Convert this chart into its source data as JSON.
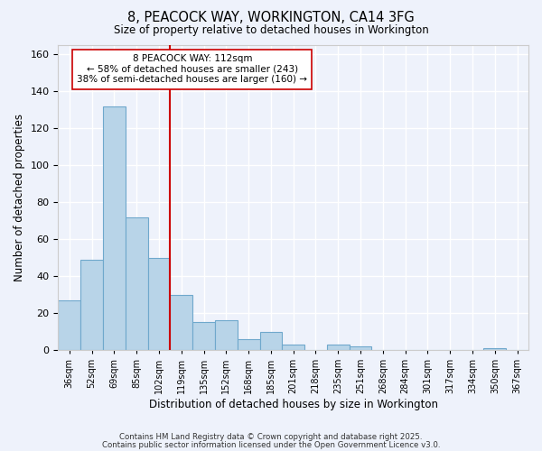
{
  "title": "8, PEACOCK WAY, WORKINGTON, CA14 3FG",
  "subtitle": "Size of property relative to detached houses in Workington",
  "xlabel": "Distribution of detached houses by size in Workington",
  "ylabel": "Number of detached properties",
  "bin_labels": [
    "36sqm",
    "52sqm",
    "69sqm",
    "85sqm",
    "102sqm",
    "119sqm",
    "135sqm",
    "152sqm",
    "168sqm",
    "185sqm",
    "201sqm",
    "218sqm",
    "235sqm",
    "251sqm",
    "268sqm",
    "284sqm",
    "301sqm",
    "317sqm",
    "334sqm",
    "350sqm",
    "367sqm"
  ],
  "bar_values": [
    27,
    49,
    132,
    72,
    50,
    30,
    15,
    16,
    6,
    10,
    3,
    0,
    3,
    2,
    0,
    0,
    0,
    0,
    0,
    1,
    0
  ],
  "bar_color": "#b8d4e8",
  "bar_edge_color": "#6fa8cc",
  "vline_x_index": 4,
  "vline_color": "#cc0000",
  "ylim": [
    0,
    165
  ],
  "yticks": [
    0,
    20,
    40,
    60,
    80,
    100,
    120,
    140,
    160
  ],
  "annotation_line1": "8 PEACOCK WAY: 112sqm",
  "annotation_line2": "← 58% of detached houses are smaller (243)",
  "annotation_line3": "38% of semi-detached houses are larger (160) →",
  "footnote1": "Contains HM Land Registry data © Crown copyright and database right 2025.",
  "footnote2": "Contains public sector information licensed under the Open Government Licence v3.0.",
  "bg_color": "#eef2fb",
  "plot_bg_color": "#eef2fb"
}
